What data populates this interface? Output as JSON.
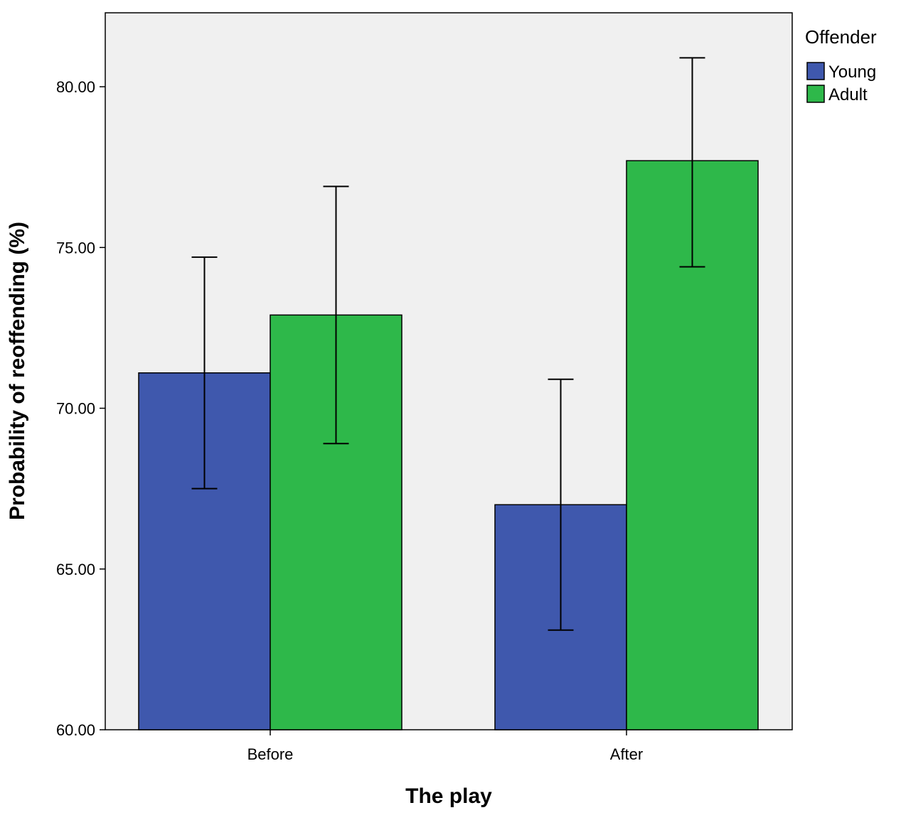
{
  "chart_data": {
    "type": "bar",
    "categories": [
      "Before",
      "After"
    ],
    "series": [
      {
        "name": "Young",
        "color": "#3f58ad",
        "values": [
          71.1,
          67.0
        ],
        "error_low": [
          67.5,
          63.1
        ],
        "error_high": [
          74.7,
          70.9
        ]
      },
      {
        "name": "Adult",
        "color": "#2eb84a",
        "values": [
          72.9,
          77.7
        ],
        "error_low": [
          68.9,
          74.4
        ],
        "error_high": [
          76.9,
          80.9
        ]
      }
    ],
    "xlabel": "The play",
    "ylabel": "Probability of reoffending (%)",
    "ylim": [
      60,
      82.3
    ],
    "yticks": [
      60,
      65,
      70,
      75,
      80
    ],
    "ytick_labels": [
      "60.00",
      "65.00",
      "70.00",
      "75.00",
      "80.00"
    ],
    "legend": {
      "title": "Offender",
      "position": "top-right, outside plot"
    },
    "plot_background": "#f0f0f0",
    "grid": false
  }
}
